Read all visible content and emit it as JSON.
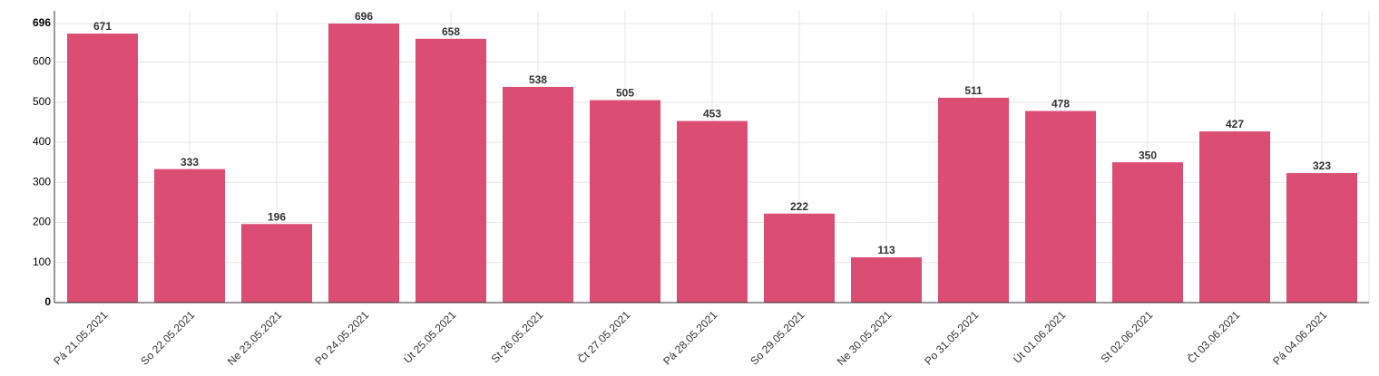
{
  "chart_data": {
    "type": "bar",
    "categories": [
      "Pá 21.05.2021",
      "So 22.05.2021",
      "Ne 23.05.2021",
      "Po 24.05.2021",
      "Út 25.05.2021",
      "St 26.05.2021",
      "Čt 27.05.2021",
      "Pá 28.05.2021",
      "So 29.05.2021",
      "Ne 30.05.2021",
      "Po 31.05.2021",
      "Út 01.06.2021",
      "St 02.06.2021",
      "Čt 03.06.2021",
      "Pá 04.06.2021"
    ],
    "values": [
      671,
      333,
      196,
      696,
      658,
      538,
      505,
      453,
      222,
      113,
      511,
      478,
      350,
      427,
      323
    ],
    "color": "#dc4d74",
    "ylim": [
      0,
      696
    ],
    "yticks": [
      0,
      100,
      200,
      300,
      400,
      500,
      600,
      696
    ],
    "grid": true
  }
}
